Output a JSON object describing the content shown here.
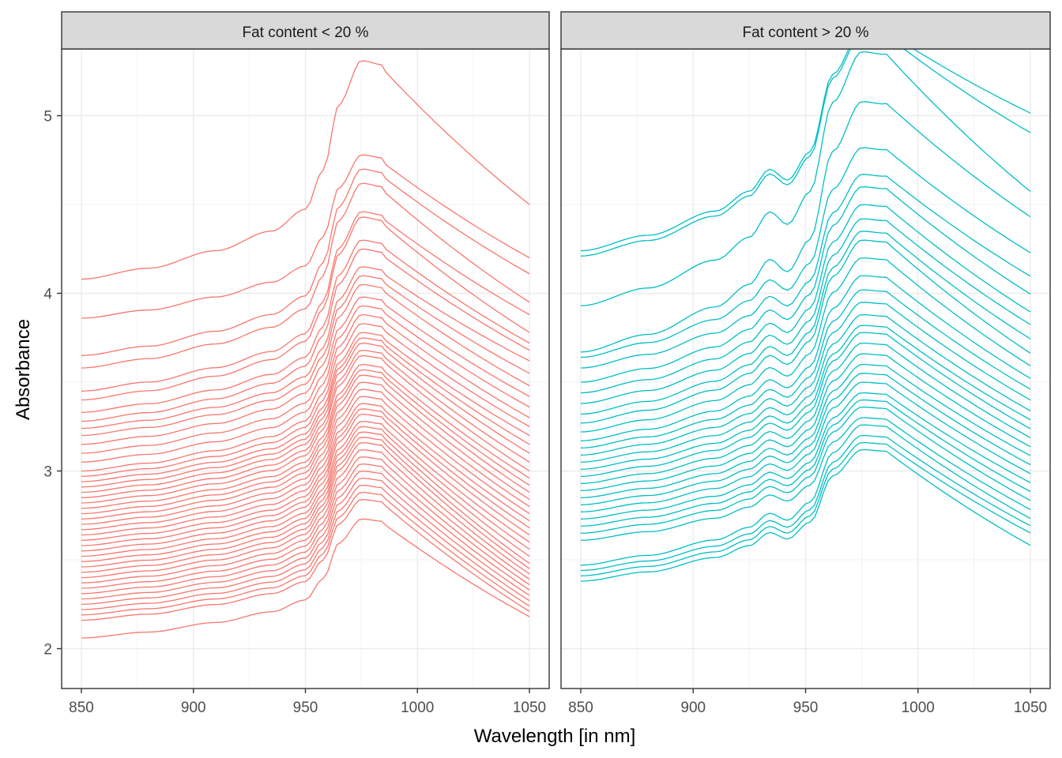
{
  "chart_data": {
    "type": "line",
    "xlabel": "Wavelength [in nm]",
    "ylabel": "Absorbance",
    "xlim": [
      850,
      1050
    ],
    "ylim": [
      2,
      5.5
    ],
    "x_ticks": [
      850,
      900,
      950,
      1000,
      1050
    ],
    "y_ticks": [
      2,
      3,
      4,
      5
    ],
    "grid": true,
    "facets": [
      {
        "label": "Fat content < 20 %",
        "color": "#F8766D",
        "series_start_values": [
          4.08,
          3.86,
          3.65,
          3.58,
          3.45,
          3.4,
          3.33,
          3.28,
          3.24,
          3.2,
          3.15,
          3.1,
          3.05,
          3.0,
          2.97,
          2.94,
          2.91,
          2.88,
          2.85,
          2.82,
          2.79,
          2.76,
          2.73,
          2.7,
          2.67,
          2.64,
          2.61,
          2.58,
          2.55,
          2.52,
          2.49,
          2.46,
          2.43,
          2.4,
          2.37,
          2.34,
          2.31,
          2.28,
          2.25,
          2.22,
          2.19,
          2.16,
          2.06
        ],
        "series_peak_values": [
          5.31,
          4.78,
          4.7,
          4.62,
          4.46,
          4.43,
          4.3,
          4.25,
          4.15,
          4.1,
          4.05,
          3.98,
          3.93,
          3.88,
          3.83,
          3.78,
          3.75,
          3.72,
          3.68,
          3.65,
          3.6,
          3.57,
          3.54,
          3.5,
          3.46,
          3.42,
          3.38,
          3.35,
          3.32,
          3.28,
          3.25,
          3.22,
          3.19,
          3.16,
          3.12,
          3.08,
          3.04,
          3.0,
          2.96,
          2.92,
          2.88,
          2.84,
          2.73
        ],
        "series_end_values": [
          4.5,
          4.2,
          4.11,
          3.95,
          3.88,
          3.78,
          3.72,
          3.68,
          3.62,
          3.55,
          3.48,
          3.42,
          3.36,
          3.3,
          3.25,
          3.2,
          3.15,
          3.1,
          3.05,
          3.0,
          2.96,
          2.92,
          2.88,
          2.84,
          2.8,
          2.76,
          2.72,
          2.68,
          2.64,
          2.6,
          2.56,
          2.52,
          2.48,
          2.45,
          2.42,
          2.39,
          2.36,
          2.33,
          2.3,
          2.27,
          2.24,
          2.21,
          2.18
        ]
      },
      {
        "label": "Fat content > 20 %",
        "color": "#00BFC4",
        "series_start_values": [
          4.24,
          4.21,
          3.93,
          3.67,
          3.64,
          3.58,
          3.5,
          3.44,
          3.38,
          3.32,
          3.27,
          3.22,
          3.17,
          3.13,
          3.09,
          3.05,
          3.01,
          2.97,
          2.93,
          2.89,
          2.85,
          2.81,
          2.77,
          2.73,
          2.69,
          2.65,
          2.61,
          2.47,
          2.44,
          2.41,
          2.38
        ],
        "series_peak_values": [
          5.48,
          5.46,
          5.36,
          5.08,
          4.82,
          4.67,
          4.6,
          4.5,
          4.42,
          4.35,
          4.3,
          4.2,
          4.1,
          4.02,
          3.95,
          3.88,
          3.82,
          3.78,
          3.72,
          3.66,
          3.6,
          3.55,
          3.5,
          3.44,
          3.4,
          3.36,
          3.3,
          3.26,
          3.2,
          3.16,
          3.12
        ],
        "series_end_values": [
          4.96,
          4.85,
          4.52,
          4.38,
          4.18,
          4.05,
          3.95,
          3.85,
          3.78,
          3.7,
          3.62,
          3.55,
          3.48,
          3.42,
          3.36,
          3.3,
          3.25,
          3.2,
          3.15,
          3.1,
          3.05,
          3.0,
          2.95,
          2.9,
          2.85,
          2.8,
          2.75,
          2.7,
          2.66,
          2.62,
          2.55
        ]
      }
    ]
  }
}
